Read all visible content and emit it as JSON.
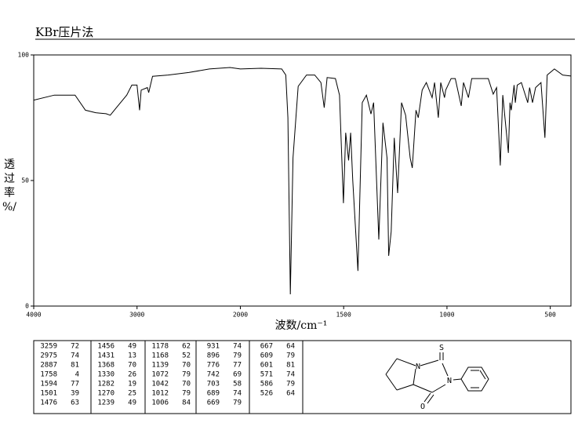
{
  "chart_data": {
    "type": "line",
    "title": "KBr压片法",
    "xlabel": "波数/cm⁻¹",
    "ylabel": [
      "透",
      "过",
      "率",
      "%/"
    ],
    "color": "#000000",
    "xlim": [
      4000,
      400
    ],
    "x_scale_change": 2000,
    "xticks": [
      4000,
      3000,
      2000,
      1500,
      1000,
      500
    ],
    "ylim": [
      0,
      100
    ],
    "yticks": [
      0,
      50,
      100
    ],
    "x": [
      4000,
      3800,
      3600,
      3500,
      3400,
      3300,
      3259,
      3200,
      3100,
      3050,
      3000,
      2975,
      2960,
      2900,
      2887,
      2850,
      2700,
      2500,
      2300,
      2100,
      2000,
      1900,
      1800,
      1780,
      1770,
      1758,
      1745,
      1720,
      1680,
      1640,
      1610,
      1594,
      1580,
      1540,
      1520,
      1501,
      1490,
      1476,
      1466,
      1456,
      1431,
      1410,
      1390,
      1368,
      1355,
      1330,
      1310,
      1290,
      1282,
      1270,
      1255,
      1239,
      1220,
      1200,
      1178,
      1168,
      1150,
      1139,
      1120,
      1100,
      1072,
      1060,
      1042,
      1030,
      1012,
      1006,
      980,
      960,
      931,
      920,
      896,
      880,
      800,
      776,
      760,
      742,
      730,
      703,
      695,
      689,
      675,
      669,
      660,
      640,
      609,
      600,
      586,
      571,
      545,
      526,
      515,
      480,
      440,
      400
    ],
    "values": [
      82,
      84,
      84,
      78,
      77,
      76.6,
      76,
      79,
      84,
      88,
      88,
      78,
      86,
      87,
      85,
      91.5,
      92,
      93,
      94.4,
      95,
      94.4,
      94.7,
      94.4,
      92,
      75,
      4.7,
      59,
      87.5,
      92,
      92,
      89,
      79,
      91,
      90.6,
      84,
      41,
      69,
      58,
      69,
      50,
      14,
      81,
      84,
      76.5,
      81,
      26.5,
      73,
      59,
      20,
      29.7,
      67,
      45,
      81,
      76,
      59,
      55,
      78,
      75,
      86,
      89,
      83,
      89,
      75,
      89,
      83,
      86,
      90.6,
      90.6,
      79.7,
      89,
      83,
      90.6,
      90.6,
      84.4,
      87,
      56,
      84,
      61,
      81,
      78,
      88,
      81,
      88,
      89,
      81,
      87,
      81,
      87,
      89,
      67,
      92,
      94.4,
      92,
      91.6
    ]
  },
  "peak_table": {
    "columns": [
      [
        [
          3259,
          72
        ],
        [
          2975,
          74
        ],
        [
          2887,
          81
        ],
        [
          1758,
          4
        ],
        [
          1594,
          77
        ],
        [
          1501,
          39
        ],
        [
          1476,
          63
        ]
      ],
      [
        [
          1456,
          49
        ],
        [
          1431,
          13
        ],
        [
          1368,
          70
        ],
        [
          1330,
          26
        ],
        [
          1282,
          19
        ],
        [
          1270,
          25
        ],
        [
          1239,
          49
        ]
      ],
      [
        [
          1178,
          62
        ],
        [
          1168,
          52
        ],
        [
          1139,
          70
        ],
        [
          1072,
          79
        ],
        [
          1042,
          70
        ],
        [
          1012,
          79
        ],
        [
          1006,
          84
        ]
      ],
      [
        [
          931,
          74
        ],
        [
          896,
          79
        ],
        [
          776,
          77
        ],
        [
          742,
          69
        ],
        [
          703,
          58
        ],
        [
          689,
          74
        ],
        [
          669,
          79
        ]
      ],
      [
        [
          667,
          64
        ],
        [
          609,
          79
        ],
        [
          601,
          81
        ],
        [
          571,
          74
        ],
        [
          586,
          79
        ],
        [
          526,
          64
        ]
      ]
    ]
  },
  "structure": {
    "atoms": [
      "S",
      "N",
      "N",
      "O"
    ]
  }
}
